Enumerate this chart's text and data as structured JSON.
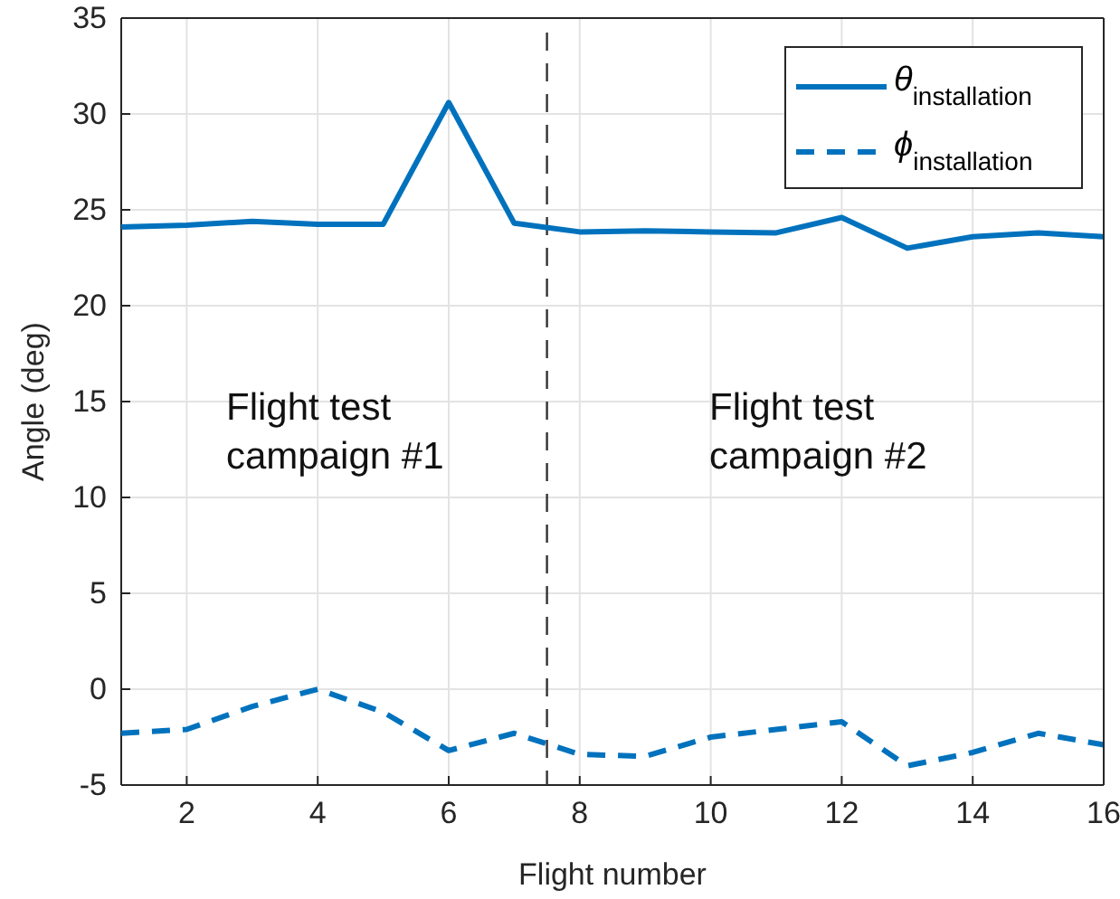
{
  "chart_data": {
    "type": "line",
    "xlabel": "Flight number",
    "ylabel": "Angle (deg)",
    "x": [
      1,
      2,
      3,
      4,
      5,
      6,
      7,
      8,
      9,
      10,
      11,
      12,
      13,
      14,
      15,
      16
    ],
    "xlim": [
      1,
      16
    ],
    "xticks": [
      2,
      4,
      6,
      8,
      10,
      12,
      14,
      16
    ],
    "ylim": [
      -5,
      35
    ],
    "yticks": [
      -5,
      0,
      5,
      10,
      15,
      20,
      25,
      30,
      35
    ],
    "grid": true,
    "legend": "top right",
    "marker": "none",
    "series": [
      {
        "name": "θ$_{installation}$",
        "color": "#0072bd",
        "line_style": "solid",
        "values": [
          24.1,
          24.2,
          24.4,
          24.25,
          24.25,
          30.6,
          24.3,
          23.85,
          23.9,
          23.85,
          23.8,
          24.6,
          23.0,
          23.6,
          23.8,
          23.6
        ]
      },
      {
        "name": "ϕ$_{installation}$",
        "color": "#0072bd",
        "line_style": "dashed",
        "values": [
          -2.3,
          -2.1,
          -0.9,
          0,
          -1.2,
          -3.2,
          -2.3,
          -3.4,
          -3.5,
          -2.5,
          -2.1,
          -1.7,
          -4.0,
          -3.3,
          -2.3,
          -2.9
        ]
      }
    ],
    "ref_lines": [
      {
        "axis": "x",
        "value": 7.5,
        "color": "#333333",
        "line_style": "dashed"
      }
    ],
    "annotations": [
      "Flight test\ncampaign #1",
      "Flight test\ncampaign #2"
    ]
  }
}
